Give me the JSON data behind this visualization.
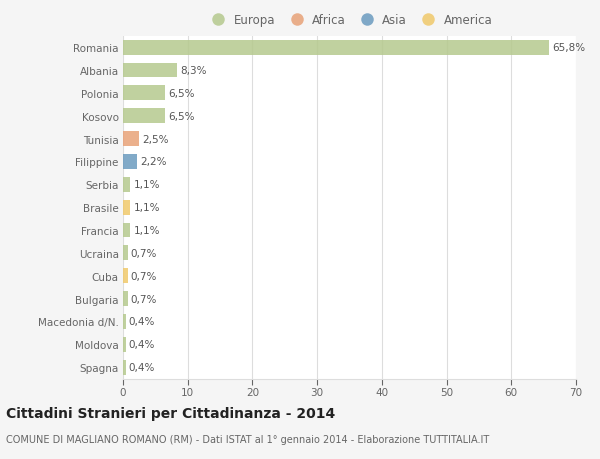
{
  "countries": [
    "Romania",
    "Albania",
    "Polonia",
    "Kosovo",
    "Tunisia",
    "Filippine",
    "Serbia",
    "Brasile",
    "Francia",
    "Ucraina",
    "Cuba",
    "Bulgaria",
    "Macedonia d/N.",
    "Moldova",
    "Spagna"
  ],
  "values": [
    65.8,
    8.3,
    6.5,
    6.5,
    2.5,
    2.2,
    1.1,
    1.1,
    1.1,
    0.7,
    0.7,
    0.7,
    0.4,
    0.4,
    0.4
  ],
  "labels": [
    "65,8%",
    "8,3%",
    "6,5%",
    "6,5%",
    "2,5%",
    "2,2%",
    "1,1%",
    "1,1%",
    "1,1%",
    "0,7%",
    "0,7%",
    "0,7%",
    "0,4%",
    "0,4%",
    "0,4%"
  ],
  "categories": [
    "Europa",
    "Europa",
    "Europa",
    "Europa",
    "Africa",
    "Asia",
    "Europa",
    "America",
    "Europa",
    "Europa",
    "America",
    "Europa",
    "Europa",
    "Europa",
    "Europa"
  ],
  "colors": {
    "Europa": "#b5c98e",
    "Africa": "#e8a278",
    "Asia": "#6b9bbf",
    "America": "#f0c96b"
  },
  "legend_order": [
    "Europa",
    "Africa",
    "Asia",
    "America"
  ],
  "legend_colors": [
    "#b5c98e",
    "#e8a278",
    "#6b9bbf",
    "#f0c96b"
  ],
  "title": "Cittadini Stranieri per Cittadinanza - 2014",
  "subtitle": "COMUNE DI MAGLIANO ROMANO (RM) - Dati ISTAT al 1° gennaio 2014 - Elaborazione TUTTITALIA.IT",
  "xlim": [
    0,
    70
  ],
  "xticks": [
    0,
    10,
    20,
    30,
    40,
    50,
    60,
    70
  ],
  "bg_color": "#f5f5f5",
  "bar_bg_color": "#ffffff",
  "grid_color": "#dddddd",
  "text_color": "#666666",
  "label_color": "#555555",
  "title_color": "#222222",
  "subtitle_color": "#666666",
  "label_fontsize": 7.5,
  "tick_fontsize": 7.5,
  "legend_fontsize": 8.5,
  "title_fontsize": 10,
  "subtitle_fontsize": 7,
  "bar_height": 0.65,
  "bar_alpha": 0.85
}
